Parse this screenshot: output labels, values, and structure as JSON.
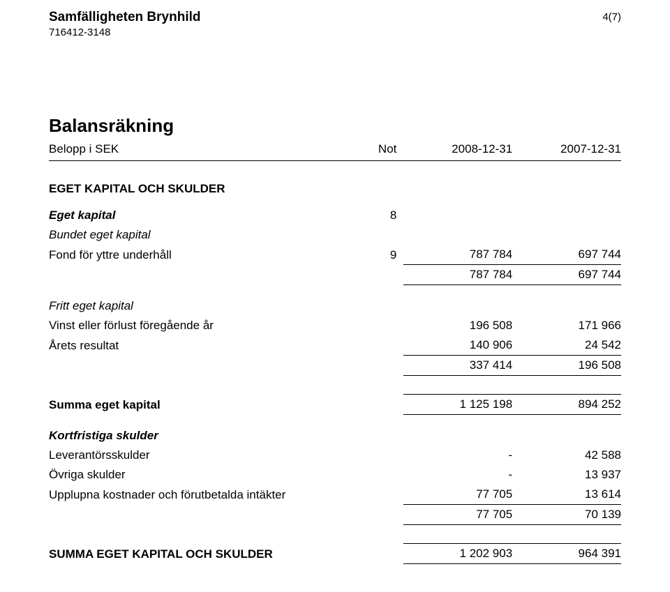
{
  "header": {
    "org_name": "Samfälligheten Brynhild",
    "org_id": "716412-3148",
    "page_no": "4(7)"
  },
  "title": "Balansräkning",
  "columns": {
    "label": "Belopp i SEK",
    "note": "Not",
    "col_a": "2008-12-31",
    "col_b": "2007-12-31"
  },
  "section_heading": "EGET KAPITAL OCH SKULDER",
  "groups": {
    "eget_kapital": {
      "heading": "Eget kapital",
      "note": "8",
      "bundet": {
        "heading": "Bundet eget kapital",
        "row": {
          "label": "Fond för yttre underhåll",
          "note": "9",
          "a": "787 784",
          "b": "697 744"
        },
        "subtotal": {
          "a": "787 784",
          "b": "697 744"
        }
      },
      "fritt": {
        "heading": "Fritt eget kapital",
        "rows": [
          {
            "label": "Vinst eller förlust föregående år",
            "a": "196 508",
            "b": "171 966"
          },
          {
            "label": "Årets resultat",
            "a": "140 906",
            "b": "24 542"
          }
        ],
        "subtotal": {
          "a": "337 414",
          "b": "196 508"
        }
      },
      "sum": {
        "label": "Summa eget kapital",
        "a": "1 125 198",
        "b": "894 252"
      }
    },
    "kortfristiga": {
      "heading": "Kortfristiga skulder",
      "rows": [
        {
          "label": "Leverantörsskulder",
          "a": "-",
          "b": "42 588"
        },
        {
          "label": "Övriga skulder",
          "a": "-",
          "b": "13 937"
        },
        {
          "label": "Upplupna kostnader och förutbetalda intäkter",
          "a": "77 705",
          "b": "13 614"
        }
      ],
      "subtotal": {
        "a": "77 705",
        "b": "70 139"
      }
    },
    "total": {
      "label": "SUMMA EGET KAPITAL OCH SKULDER",
      "a": "1 202 903",
      "b": "964 391"
    }
  }
}
